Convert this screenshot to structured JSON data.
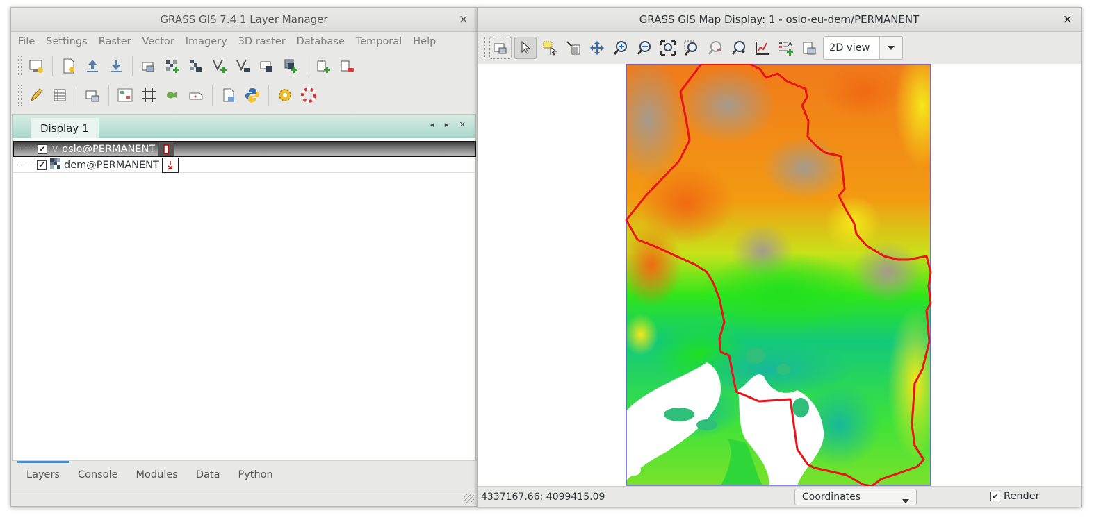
{
  "layer_manager": {
    "title": "GRASS GIS 7.4.1 Layer Manager",
    "close": "×",
    "menu": [
      "File",
      "Settings",
      "Raster",
      "Vector",
      "Imagery",
      "3D raster",
      "Database",
      "Temporal",
      "Help"
    ],
    "display_tab": "Display 1",
    "tab_nav": "◂ ▸ ✕",
    "layers": [
      {
        "name": "oslo@PERMANENT",
        "type_label": "V",
        "checked": true,
        "selected": true
      },
      {
        "name": "dem@PERMANENT",
        "checked": true,
        "selected": false
      }
    ],
    "check_mark": "✔",
    "bottom_tabs": [
      "Layers",
      "Console",
      "Modules",
      "Data",
      "Python"
    ]
  },
  "map_display": {
    "title": "GRASS GIS Map Display: 1 - oslo-eu-dem/PERMANENT",
    "close": "×",
    "view_mode": "2D view",
    "coordinates": "4337167.66; 4099415.09",
    "status_mode": "Coordinates",
    "render_label": "Render",
    "render_checked": true
  },
  "colors": {
    "boundary": "#e8141a",
    "region_border": "#5b5bd6",
    "accent_tab": "#4a90d9"
  }
}
